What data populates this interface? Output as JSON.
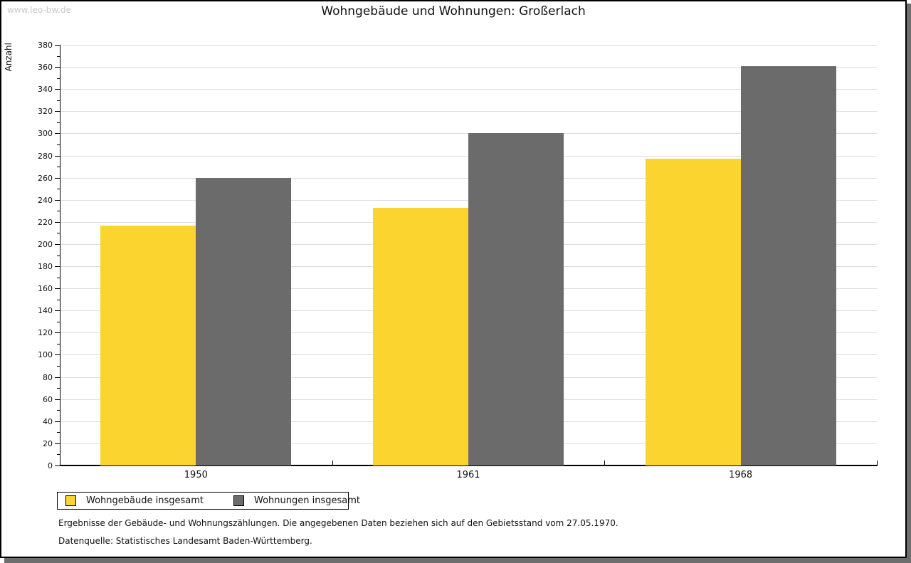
{
  "watermark": "www.leo-bw.de",
  "title": "Wohngebäude und Wohnungen: Großerlach",
  "chart_data": {
    "type": "bar",
    "title": "Wohngebäude und Wohnungen: Großerlach",
    "xlabel": "",
    "ylabel": "Anzahl",
    "categories": [
      "1950",
      "1961",
      "1968"
    ],
    "series": [
      {
        "name": "Wohngebäude insgesamt",
        "color": "#fcd42f",
        "values": [
          217,
          233,
          277
        ]
      },
      {
        "name": "Wohnungen insgesamt",
        "color": "#6b6b6b",
        "values": [
          260,
          300,
          361
        ]
      }
    ],
    "ylim": [
      0,
      380
    ],
    "ytick_step": 20,
    "minor_tick_step": 10,
    "grid": true,
    "legend_position": "bottom-left"
  },
  "colors": {
    "bar_yellow": "#fcd42f",
    "bar_gray": "#6b6b6b",
    "gridline": "#dedede",
    "shadow": "#6e6e6e",
    "watermark": "#c9c9c9"
  },
  "footnotes": {
    "line1": "Ergebnisse der Gebäude- und Wohnungszählungen. Die angegebenen Daten beziehen sich auf den Gebietsstand vom 27.05.1970.",
    "line2": "Datenquelle: Statistisches Landesamt Baden-Württemberg."
  }
}
